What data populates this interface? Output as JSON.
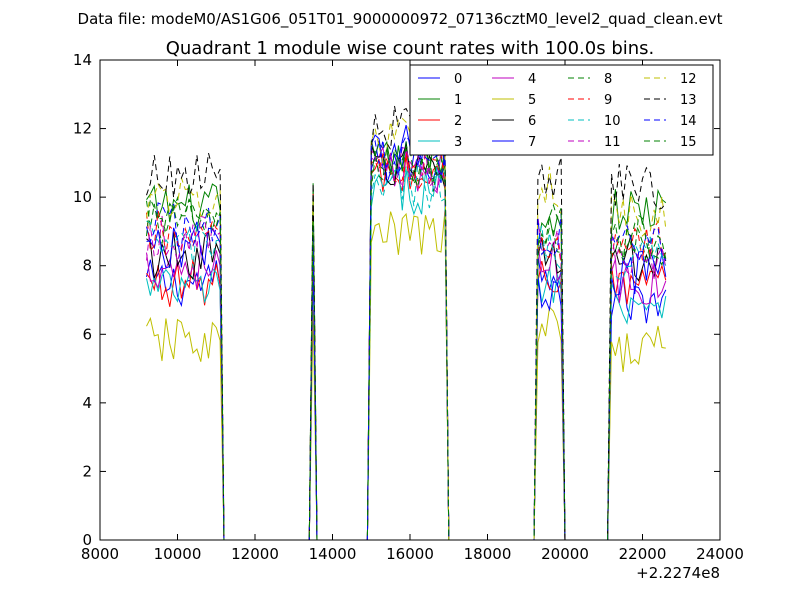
{
  "suptitle": "Data file: modeM0/AS1G06_051T01_9000000972_07136cztM0_level2_quad_clean.evt",
  "chart_data": {
    "type": "line",
    "title": "Quadrant 1 module wise count rates with 100.0s bins.",
    "xlabel": "",
    "ylabel": "",
    "xlim": [
      8000,
      24000
    ],
    "ylim": [
      0,
      14
    ],
    "x_ticks": [
      8000,
      10000,
      12000,
      14000,
      16000,
      18000,
      20000,
      22000,
      24000
    ],
    "x_tick_labels": [
      "8000",
      "10000",
      "12000",
      "14000",
      "16000",
      "18000",
      "20000",
      "22000",
      "24000"
    ],
    "y_ticks": [
      0,
      2,
      4,
      6,
      8,
      10,
      12,
      14
    ],
    "y_tick_labels": [
      "0",
      "2",
      "4",
      "6",
      "8",
      "10",
      "12",
      "14"
    ],
    "x_offset_label": "+2.2274e8",
    "legend_position": "top-right",
    "legend_columns": 4,
    "bin_seconds": 100,
    "segments": [
      {
        "start": 9200,
        "end": 11100
      },
      {
        "start": 13450,
        "end": 13550
      },
      {
        "start": 14950,
        "end": 16950
      },
      {
        "start": 19250,
        "end": 19950
      },
      {
        "start": 21200,
        "end": 22600
      }
    ],
    "series": [
      {
        "name": "0",
        "color": "#0000ff",
        "dash": "solid",
        "levels": [
          7.5,
          8.8,
          11.0,
          8.0,
          7.0
        ]
      },
      {
        "name": "1",
        "color": "#008000",
        "dash": "solid",
        "levels": [
          9.7,
          10.2,
          11.0,
          9.3,
          9.6
        ]
      },
      {
        "name": "2",
        "color": "#ff0000",
        "dash": "solid",
        "levels": [
          7.5,
          8.5,
          10.6,
          7.8,
          7.4
        ]
      },
      {
        "name": "3",
        "color": "#00bfbf",
        "dash": "solid",
        "levels": [
          7.3,
          8.2,
          10.2,
          7.6,
          7.0
        ]
      },
      {
        "name": "4",
        "color": "#bf00bf",
        "dash": "solid",
        "levels": [
          8.0,
          8.8,
          10.8,
          8.1,
          7.5
        ]
      },
      {
        "name": "5",
        "color": "#bfbf00",
        "dash": "solid",
        "levels": [
          5.8,
          6.3,
          8.9,
          6.2,
          5.6
        ]
      },
      {
        "name": "6",
        "color": "#000000",
        "dash": "solid",
        "levels": [
          8.3,
          9.2,
          10.9,
          8.3,
          8.2
        ]
      },
      {
        "name": "7",
        "color": "#0000ff",
        "dash": "solid",
        "levels": [
          8.6,
          7.8,
          11.5,
          7.3,
          7.8
        ]
      },
      {
        "name": "8",
        "color": "#008000",
        "dash": "dashed",
        "levels": [
          9.3,
          9.7,
          10.8,
          8.9,
          8.6
        ]
      },
      {
        "name": "9",
        "color": "#ff0000",
        "dash": "dashed",
        "levels": [
          8.9,
          9.5,
          10.7,
          8.6,
          8.6
        ]
      },
      {
        "name": "10",
        "color": "#00bfbf",
        "dash": "dashed",
        "levels": [
          8.6,
          9.2,
          10.3,
          8.5,
          8.3
        ]
      },
      {
        "name": "11",
        "color": "#bf00bf",
        "dash": "dashed",
        "levels": [
          8.8,
          9.4,
          10.8,
          8.8,
          8.3
        ]
      },
      {
        "name": "12",
        "color": "#bfbf00",
        "dash": "dashed",
        "levels": [
          10.0,
          10.6,
          11.6,
          10.2,
          9.5
        ]
      },
      {
        "name": "13",
        "color": "#000000",
        "dash": "dashed",
        "levels": [
          10.6,
          11.0,
          12.0,
          10.5,
          10.3
        ]
      },
      {
        "name": "14",
        "color": "#0000ff",
        "dash": "dashed",
        "levels": [
          9.2,
          9.6,
          11.2,
          8.9,
          8.7
        ]
      },
      {
        "name": "15",
        "color": "#008000",
        "dash": "dashed",
        "levels": [
          9.3,
          9.8,
          10.9,
          9.1,
          8.8
        ]
      }
    ]
  }
}
